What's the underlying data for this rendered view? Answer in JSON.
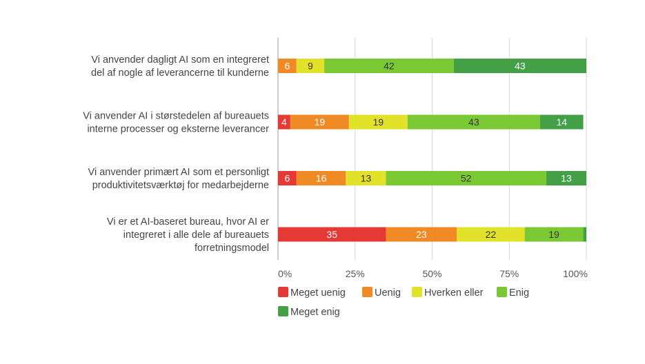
{
  "chart_data": {
    "type": "bar",
    "orientation": "horizontal",
    "stacked": "percent",
    "categories": [
      [
        "Vi anvender dagligt AI som en integreret",
        "del af nogle af leverancerne til kunderne"
      ],
      [
        "Vi anvender AI i størstedelen af bureauets",
        "interne processer og eksterne leverancer"
      ],
      [
        "Vi anvender primært AI som et personligt",
        "produktivitetsværktøj for medarbejderne"
      ],
      [
        "Vi er et AI-baseret bureau, hvor AI er",
        "integreret i alle dele af bureauets",
        "forretningsmodel"
      ]
    ],
    "series": [
      {
        "name": "Meget uenig",
        "color": "#e53935",
        "label_color": "#ffffff",
        "values": [
          0,
          4,
          6,
          35
        ]
      },
      {
        "name": "Uenig",
        "color": "#ef8a25",
        "label_color": "#ffffff",
        "values": [
          6,
          19,
          16,
          23
        ]
      },
      {
        "name": "Hverken eller",
        "color": "#e3e22a",
        "label_color": "#333333",
        "values": [
          9,
          19,
          13,
          22
        ]
      },
      {
        "name": "Enig",
        "color": "#7ac833",
        "label_color": "#333333",
        "values": [
          42,
          43,
          52,
          19
        ]
      },
      {
        "name": "Meget enig",
        "color": "#43a047",
        "label_color": "#ffffff",
        "values": [
          43,
          14,
          13,
          1
        ]
      }
    ],
    "show_label_min": 3,
    "xticks": [
      "0%",
      "25%",
      "50%",
      "75%",
      "100%"
    ],
    "xlim": [
      0,
      100
    ],
    "grid": true,
    "legend": "bottom"
  }
}
